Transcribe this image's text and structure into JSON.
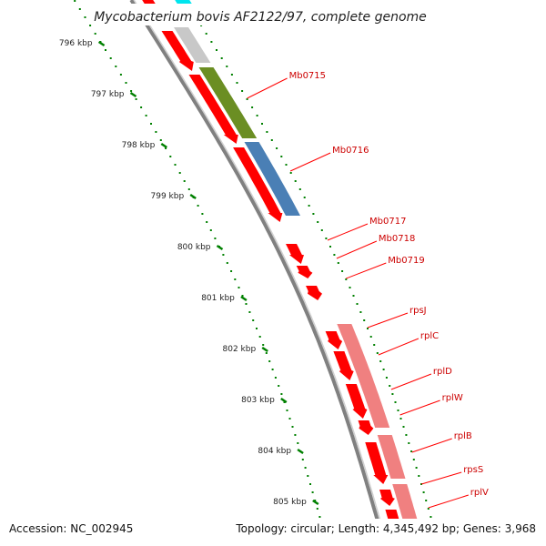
{
  "title": "Mycobacterium bovis AF2122/97, complete genome",
  "footer": {
    "accession": "Accession: NC_002945",
    "summary": "Topology: circular; Length: 4,345,492 bp; Genes: 3,968"
  },
  "ruler": {
    "unit": "kbp",
    "ticks": [
      "796 kbp",
      "797 kbp",
      "798 kbp",
      "799 kbp",
      "800 kbp",
      "801 kbp",
      "802 kbp",
      "803 kbp",
      "804 kbp",
      "805 kbp"
    ]
  },
  "gene_labels": [
    "Mb0715",
    "Mb0716",
    "Mb0717",
    "Mb0718",
    "Mb0719",
    "rpsJ",
    "rplC",
    "rplD",
    "rplW",
    "rplB",
    "rpsS",
    "rplV"
  ],
  "colors": {
    "gene": "#ff0000",
    "cog_grey": "#c8c8c8",
    "cog_olive": "#6b8e23",
    "cog_steelblue": "#4a7fb5",
    "cog_pink": "#f08080",
    "cog_cyan": "#00e5ee",
    "ruler_tick": "#008000",
    "backbone": "#808080",
    "label": "#cc0000"
  }
}
